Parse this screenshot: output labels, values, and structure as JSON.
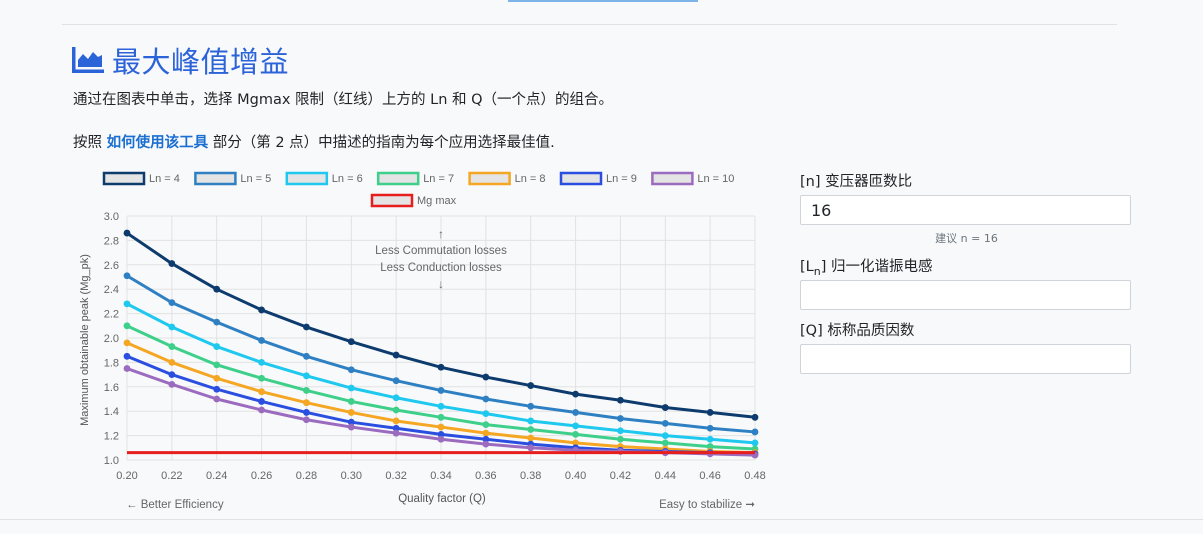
{
  "section": {
    "title": "最大峰值增益",
    "icon": "area-chart-icon",
    "instruction": "通过在图表中单击，选择 Mgmax 限制（红线）上方的 Ln 和 Q（一个点）的组合。",
    "guide_prefix": "按照 ",
    "guide_link": "如何使用该工具",
    "guide_suffix": " 部分（第 2 点）中描述的指南为每个应用选择最佳值."
  },
  "form": {
    "n_label": "[n] 变压器匝数比",
    "n_value": "16",
    "n_hint": "建议 n = 16",
    "ln_label_prefix": "[L",
    "ln_label_sub": "n",
    "ln_label_suffix": "] 归一化谐振电感",
    "ln_value": "",
    "q_label": "[Q] 标称品质因数",
    "q_value": ""
  },
  "chart_data": {
    "type": "line",
    "xlabel": "Quality factor (Q)",
    "ylabel": "Maximum obtainable peak (Mg_pk)",
    "xlim": [
      0.2,
      0.48
    ],
    "ylim": [
      1.0,
      3.0
    ],
    "x_ticks": [
      "0.20",
      "0.22",
      "0.24",
      "0.26",
      "0.28",
      "0.30",
      "0.32",
      "0.34",
      "0.36",
      "0.38",
      "0.40",
      "0.42",
      "0.44",
      "0.46",
      "0.48"
    ],
    "y_ticks": [
      "1.0",
      "1.2",
      "1.4",
      "1.6",
      "1.8",
      "2.0",
      "2.2",
      "2.4",
      "2.6",
      "2.8",
      "3.0"
    ],
    "grid": true,
    "legend_position": "top",
    "x": [
      0.2,
      0.22,
      0.24,
      0.26,
      0.28,
      0.3,
      0.32,
      0.34,
      0.36,
      0.38,
      0.4,
      0.42,
      0.44,
      0.46,
      0.48
    ],
    "series": [
      {
        "name": "Ln = 4",
        "color": "#0d3b6e",
        "values": [
          2.86,
          2.61,
          2.4,
          2.23,
          2.09,
          1.97,
          1.86,
          1.76,
          1.68,
          1.61,
          1.54,
          1.49,
          1.43,
          1.39,
          1.35
        ]
      },
      {
        "name": "Ln = 5",
        "color": "#2e80c3",
        "values": [
          2.51,
          2.29,
          2.13,
          1.98,
          1.85,
          1.74,
          1.65,
          1.57,
          1.5,
          1.44,
          1.39,
          1.34,
          1.3,
          1.26,
          1.23
        ]
      },
      {
        "name": "Ln = 6",
        "color": "#1ec8ee",
        "values": [
          2.28,
          2.09,
          1.93,
          1.8,
          1.69,
          1.59,
          1.51,
          1.44,
          1.38,
          1.32,
          1.28,
          1.24,
          1.2,
          1.17,
          1.14
        ]
      },
      {
        "name": "Ln = 7",
        "color": "#3ecf8a",
        "values": [
          2.1,
          1.93,
          1.78,
          1.67,
          1.57,
          1.48,
          1.41,
          1.35,
          1.29,
          1.25,
          1.21,
          1.17,
          1.14,
          1.11,
          1.09
        ]
      },
      {
        "name": "Ln = 8",
        "color": "#f5a623",
        "values": [
          1.96,
          1.8,
          1.67,
          1.56,
          1.47,
          1.39,
          1.32,
          1.27,
          1.22,
          1.18,
          1.14,
          1.11,
          1.09,
          1.07,
          1.06
        ]
      },
      {
        "name": "Ln = 9",
        "color": "#2a4fe0",
        "values": [
          1.85,
          1.7,
          1.58,
          1.48,
          1.39,
          1.31,
          1.26,
          1.21,
          1.17,
          1.13,
          1.1,
          1.08,
          1.07,
          1.06,
          1.05
        ]
      },
      {
        "name": "Ln = 10",
        "color": "#9b6bbf",
        "values": [
          1.75,
          1.62,
          1.5,
          1.41,
          1.33,
          1.27,
          1.22,
          1.17,
          1.13,
          1.1,
          1.08,
          1.07,
          1.06,
          1.05,
          1.04
        ]
      },
      {
        "name": "Mg max",
        "color": "#e61e1e",
        "values": [
          1.06,
          1.06,
          1.06,
          1.06,
          1.06,
          1.06,
          1.06,
          1.06,
          1.06,
          1.06,
          1.06,
          1.06,
          1.06,
          1.06,
          1.06
        ],
        "markers": false
      }
    ],
    "annotations": {
      "top_line1": "Less Commutation losses",
      "top_line2": "Less Conduction losses",
      "left": "← Better Efficiency",
      "right": "Easy to stabilize ➞"
    }
  }
}
